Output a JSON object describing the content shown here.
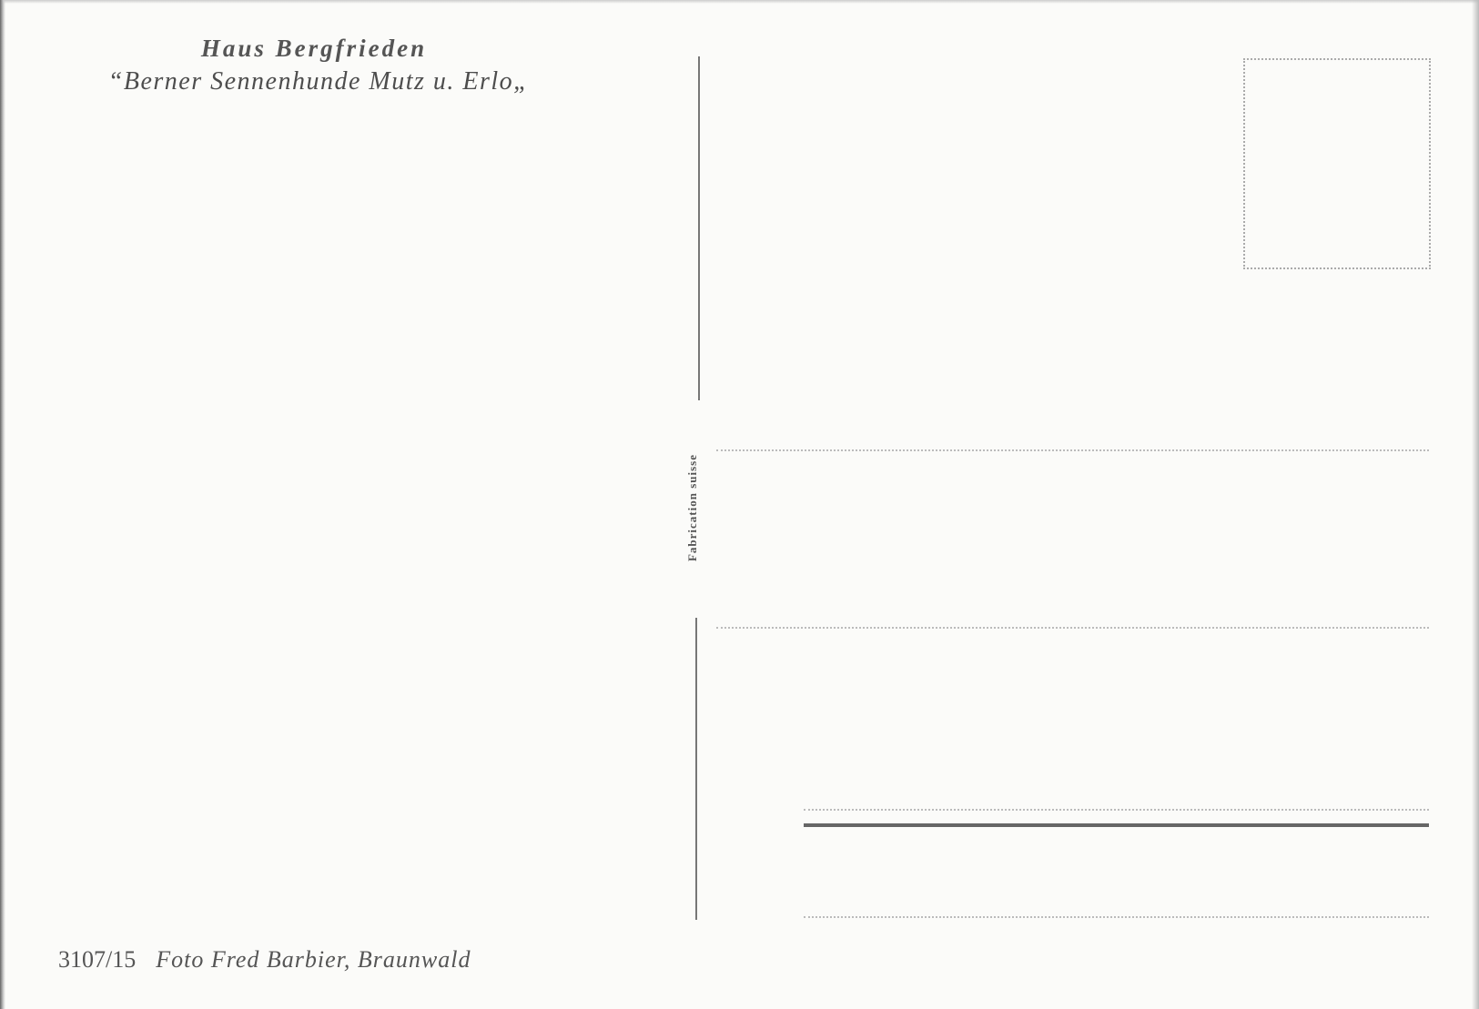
{
  "postcard": {
    "title": "Haus Bergfrieden",
    "subtitle": "“Berner Sennenhunde Mutz u. Erlo„",
    "side_text": "Fabrication suisse",
    "catalog_number": "3107/15",
    "photo_credit": "Foto Fred Barbier, Braunwald"
  }
}
